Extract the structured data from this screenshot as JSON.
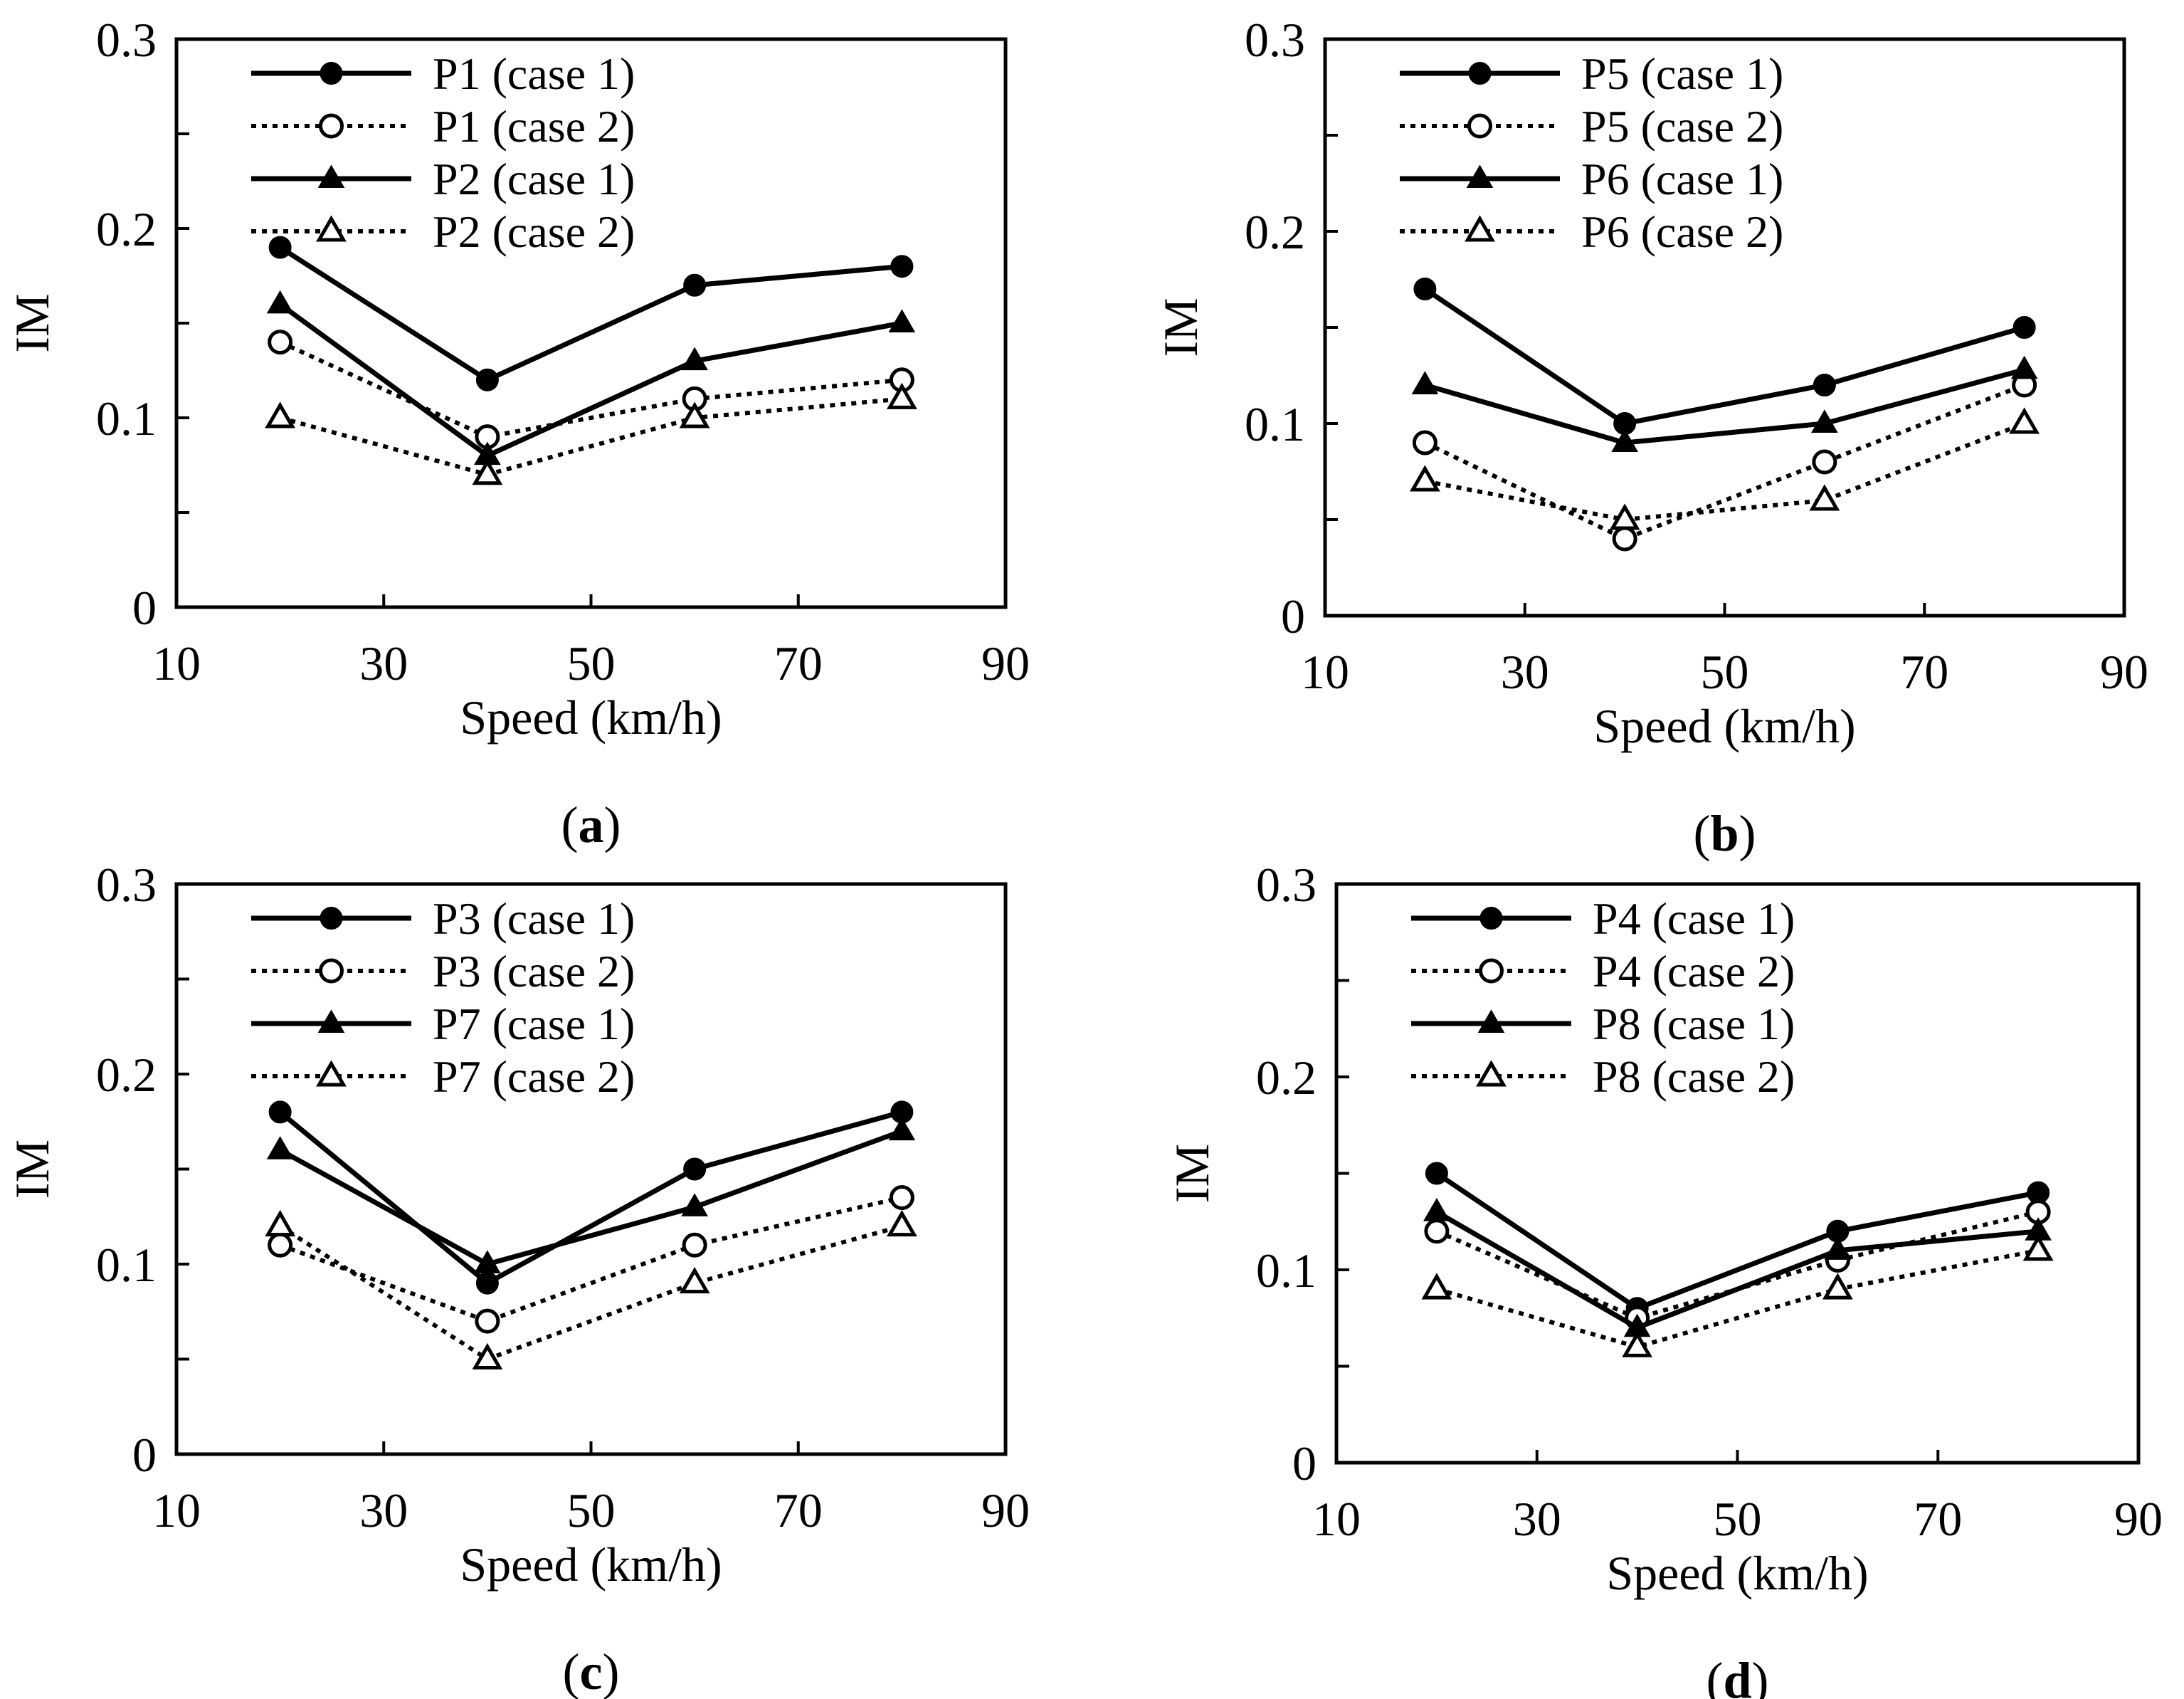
{
  "figure": {
    "description_free": true
  },
  "chart_data": [
    {
      "id": "a",
      "type": "line",
      "panel_label": "a",
      "xlabel": "Speed (km/h)",
      "ylabel": "IM",
      "xlim": [
        10,
        90
      ],
      "ylim": [
        0,
        0.3
      ],
      "xticks": [
        10,
        30,
        50,
        70,
        90
      ],
      "yticks": [
        0,
        0.1,
        0.2,
        0.3
      ],
      "ytick_labels": [
        "0",
        "0.1",
        "0.2",
        "0.3"
      ],
      "legend_position": "top-left",
      "x": [
        20,
        40,
        60,
        80
      ],
      "series": [
        {
          "name": "P1 (case 1)",
          "marker": "circle",
          "filled": true,
          "dashed": false,
          "values": [
            0.19,
            0.12,
            0.17,
            0.18
          ]
        },
        {
          "name": "P1 (case 2)",
          "marker": "circle",
          "filled": false,
          "dashed": true,
          "values": [
            0.14,
            0.09,
            0.11,
            0.12
          ]
        },
        {
          "name": "P2 (case 1)",
          "marker": "triangle",
          "filled": true,
          "dashed": false,
          "values": [
            0.16,
            0.08,
            0.13,
            0.15
          ]
        },
        {
          "name": "P2 (case 2)",
          "marker": "triangle",
          "filled": false,
          "dashed": true,
          "values": [
            0.1,
            0.07,
            0.1,
            0.11
          ]
        }
      ]
    },
    {
      "id": "b",
      "type": "line",
      "panel_label": "b",
      "xlabel": "Speed (km/h)",
      "ylabel": "IM",
      "xlim": [
        10,
        90
      ],
      "ylim": [
        0,
        0.3
      ],
      "xticks": [
        10,
        30,
        50,
        70,
        90
      ],
      "yticks": [
        0,
        0.1,
        0.2,
        0.3
      ],
      "ytick_labels": [
        "0",
        "0.1",
        "0.2",
        "0.3"
      ],
      "legend_position": "top-left",
      "x": [
        20,
        40,
        60,
        80
      ],
      "series": [
        {
          "name": "P5 (case 1)",
          "marker": "circle",
          "filled": true,
          "dashed": false,
          "values": [
            0.17,
            0.1,
            0.12,
            0.15
          ]
        },
        {
          "name": "P5 (case 2)",
          "marker": "circle",
          "filled": false,
          "dashed": true,
          "values": [
            0.09,
            0.04,
            0.08,
            0.12
          ]
        },
        {
          "name": "P6 (case 1)",
          "marker": "triangle",
          "filled": true,
          "dashed": false,
          "values": [
            0.12,
            0.09,
            0.1,
            0.128
          ]
        },
        {
          "name": "P6 (case 2)",
          "marker": "triangle",
          "filled": false,
          "dashed": true,
          "values": [
            0.07,
            0.05,
            0.06,
            0.1
          ]
        }
      ]
    },
    {
      "id": "c",
      "type": "line",
      "panel_label": "c",
      "xlabel": "Speed (km/h)",
      "ylabel": "IM",
      "xlim": [
        10,
        90
      ],
      "ylim": [
        0,
        0.3
      ],
      "xticks": [
        10,
        30,
        50,
        70,
        90
      ],
      "yticks": [
        0,
        0.1,
        0.2,
        0.3
      ],
      "ytick_labels": [
        "0",
        "0.1",
        "0.2",
        "0.3"
      ],
      "legend_position": "top-left",
      "x": [
        20,
        40,
        60,
        80
      ],
      "series": [
        {
          "name": "P3 (case 1)",
          "marker": "circle",
          "filled": true,
          "dashed": false,
          "values": [
            0.18,
            0.09,
            0.15,
            0.18
          ]
        },
        {
          "name": "P3 (case 2)",
          "marker": "circle",
          "filled": false,
          "dashed": true,
          "values": [
            0.11,
            0.07,
            0.11,
            0.135
          ]
        },
        {
          "name": "P7 (case 1)",
          "marker": "triangle",
          "filled": true,
          "dashed": false,
          "values": [
            0.16,
            0.1,
            0.13,
            0.17
          ]
        },
        {
          "name": "P7 (case 2)",
          "marker": "triangle",
          "filled": false,
          "dashed": true,
          "values": [
            0.12,
            0.05,
            0.09,
            0.12
          ]
        }
      ]
    },
    {
      "id": "d",
      "type": "line",
      "panel_label": "d",
      "xlabel": "Speed (km/h)",
      "ylabel": "IM",
      "xlim": [
        10,
        90
      ],
      "ylim": [
        0,
        0.3
      ],
      "xticks": [
        10,
        30,
        50,
        70,
        90
      ],
      "yticks": [
        0,
        0.1,
        0.2,
        0.3
      ],
      "ytick_labels": [
        "0",
        "0.1",
        "0.2",
        "0.3"
      ],
      "legend_position": "top-left",
      "x": [
        20,
        40,
        60,
        80
      ],
      "series": [
        {
          "name": "P4 (case 1)",
          "marker": "circle",
          "filled": true,
          "dashed": false,
          "values": [
            0.15,
            0.08,
            0.12,
            0.14
          ]
        },
        {
          "name": "P4 (case 2)",
          "marker": "circle",
          "filled": false,
          "dashed": true,
          "values": [
            0.12,
            0.075,
            0.105,
            0.13
          ]
        },
        {
          "name": "P8 (case 1)",
          "marker": "triangle",
          "filled": true,
          "dashed": false,
          "values": [
            0.13,
            0.07,
            0.11,
            0.12
          ]
        },
        {
          "name": "P8 (case 2)",
          "marker": "triangle",
          "filled": false,
          "dashed": true,
          "values": [
            0.09,
            0.06,
            0.09,
            0.11
          ]
        }
      ]
    }
  ]
}
